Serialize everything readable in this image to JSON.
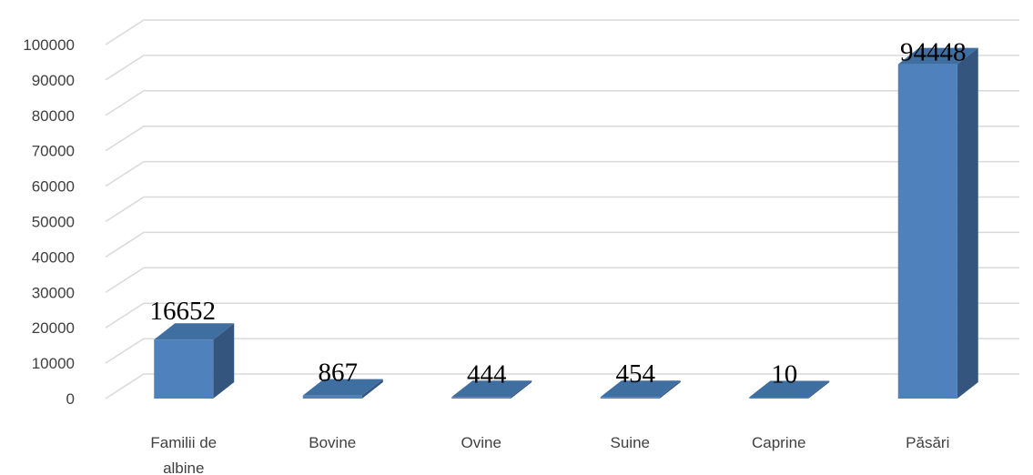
{
  "chart_data": {
    "type": "bar",
    "style": "3d-column",
    "categories": [
      "Familii de albine",
      "Bovine",
      "Ovine",
      "Suine",
      "Caprine",
      "Păsări"
    ],
    "category_lines": [
      [
        "Familii de",
        "albine"
      ],
      [
        "Bovine"
      ],
      [
        "Ovine"
      ],
      [
        "Suine"
      ],
      [
        "Caprine"
      ],
      [
        "Păsări"
      ]
    ],
    "values": [
      16652,
      867,
      444,
      454,
      10,
      94448
    ],
    "data_labels": [
      "16652",
      "867",
      "444",
      "454",
      "10",
      "94448"
    ],
    "ylim": [
      0,
      100000
    ],
    "ytick_step": 10000,
    "yticks": [
      "0",
      "10000",
      "20000",
      "30000",
      "40000",
      "50000",
      "60000",
      "70000",
      "80000",
      "90000",
      "100000"
    ],
    "grid": true,
    "legend": "none",
    "colors": {
      "front": "#4f81bd",
      "side": "#34557d",
      "top": "#3f6ea0",
      "grid": "#d9d9d9"
    }
  }
}
